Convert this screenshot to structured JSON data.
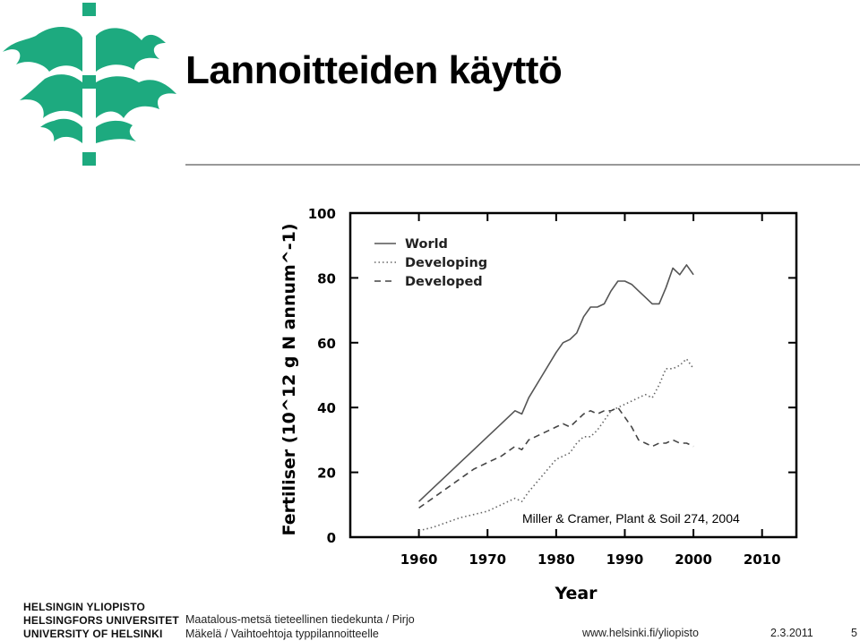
{
  "slide": {
    "title": "Lannoitteiden käyttö",
    "citation": "Miller & Cramer, Plant & Soil 274, 2004",
    "accent_color": "#1daa7f"
  },
  "footer": {
    "university": [
      "HELSINGIN YLIOPISTO",
      "HELSINGFORS UNIVERSITET",
      "UNIVERSITY OF HELSINKI"
    ],
    "author_line1": "Maatalous-metsä tieteellinen tiedekunta / Pirjo",
    "author_line2": "Mäkelä / Vaihtoehtoja typpilannoitteelle",
    "url": "www.helsinki.fi/yliopisto",
    "date": "2.3.2011",
    "page": "5"
  },
  "chart_data": {
    "type": "line",
    "xlabel": "Year",
    "ylabel": "Fertiliser (10^12 g N annum^-1)",
    "xlim": [
      1950,
      2015
    ],
    "ylim": [
      0,
      100
    ],
    "xticks": [
      "1960",
      "1970",
      "1980",
      "1990",
      "2000",
      "2010"
    ],
    "yticks": [
      "0",
      "20",
      "40",
      "60",
      "80",
      "100"
    ],
    "legend_position": "top-left",
    "series": [
      {
        "name": "World",
        "style": "solid",
        "x": [
          1960,
          1962,
          1964,
          1966,
          1968,
          1970,
          1972,
          1974,
          1975,
          1976,
          1978,
          1980,
          1981,
          1982,
          1983,
          1984,
          1985,
          1986,
          1987,
          1988,
          1989,
          1990,
          1991,
          1992,
          1993,
          1994,
          1995,
          1996,
          1997,
          1998,
          1999,
          2000
        ],
        "y": [
          11,
          15,
          19,
          23,
          27,
          31,
          35,
          39,
          38,
          43,
          50,
          57,
          60,
          61,
          63,
          68,
          71,
          71,
          72,
          76,
          79,
          79,
          78,
          76,
          74,
          72,
          72,
          77,
          83,
          81,
          84,
          81
        ]
      },
      {
        "name": "Developing",
        "style": "dotted",
        "x": [
          1960,
          1962,
          1964,
          1966,
          1968,
          1970,
          1972,
          1974,
          1975,
          1976,
          1978,
          1980,
          1981,
          1982,
          1983,
          1984,
          1985,
          1986,
          1987,
          1988,
          1989,
          1990,
          1991,
          1992,
          1993,
          1994,
          1995,
          1996,
          1997,
          1998,
          1999,
          2000
        ],
        "y": [
          2,
          3,
          4.5,
          6,
          7,
          8,
          10,
          12,
          11,
          14,
          19,
          24,
          25,
          26,
          29,
          31,
          31,
          33,
          36,
          39,
          40,
          41,
          42,
          43,
          44,
          43,
          47,
          52,
          52,
          53,
          55,
          52
        ]
      },
      {
        "name": "Developed",
        "style": "dashed",
        "x": [
          1960,
          1962,
          1964,
          1966,
          1968,
          1970,
          1972,
          1974,
          1975,
          1976,
          1978,
          1980,
          1981,
          1982,
          1983,
          1984,
          1985,
          1986,
          1987,
          1988,
          1989,
          1990,
          1991,
          1992,
          1993,
          1994,
          1995,
          1996,
          1997,
          1998,
          1999,
          2000
        ],
        "y": [
          9,
          12,
          15,
          18,
          21,
          23,
          25,
          28,
          27,
          30,
          32,
          34,
          35,
          34,
          36,
          38,
          39,
          38,
          39,
          39,
          40,
          37,
          34,
          30,
          29,
          28,
          29,
          29,
          30,
          29,
          29,
          28
        ]
      }
    ]
  }
}
